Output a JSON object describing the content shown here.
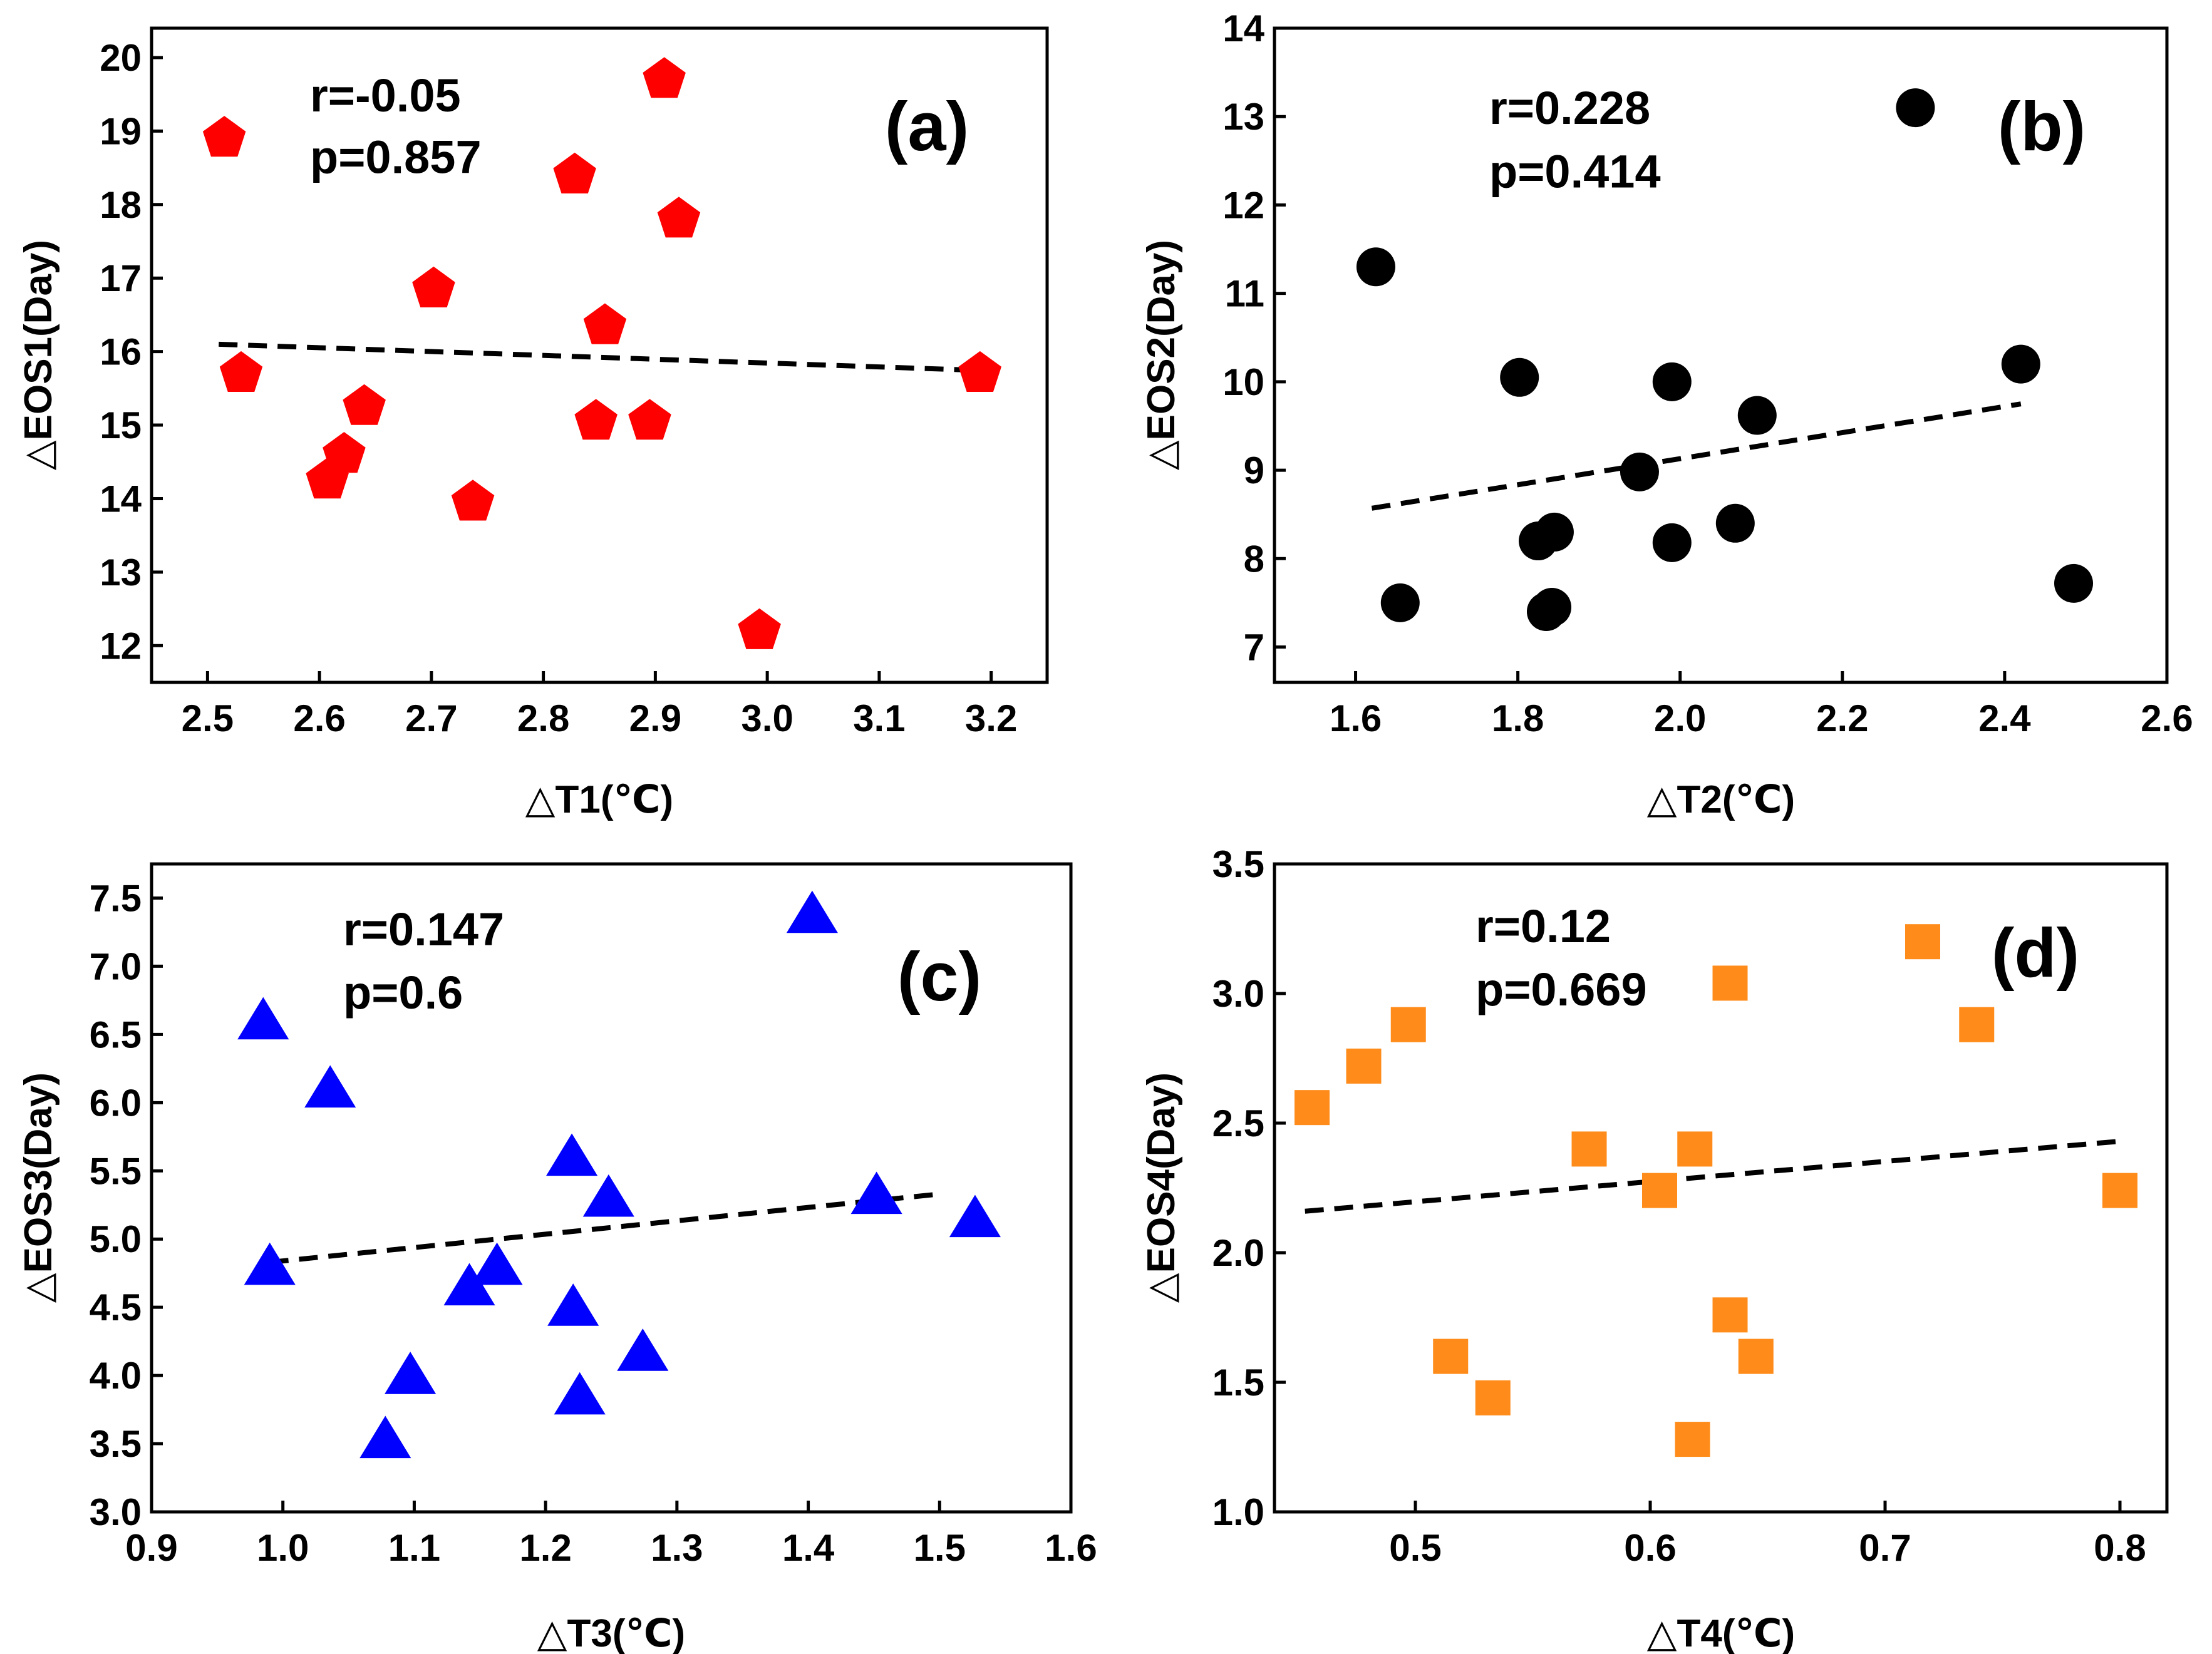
{
  "chart_data": [
    {
      "type": "scatter",
      "panel_label": "(a)",
      "xlabel": "△T1(℃)",
      "ylabel": "△EOS1(Day)",
      "xlim": [
        2.45,
        3.25
      ],
      "ylim": [
        11.5,
        20.4
      ],
      "xticks": [
        "2.5",
        "2.6",
        "2.7",
        "2.8",
        "2.9",
        "3.0",
        "3.1",
        "3.2"
      ],
      "yticks": [
        "12",
        "13",
        "14",
        "15",
        "16",
        "17",
        "18",
        "19",
        "20"
      ],
      "marker": "pentagon",
      "color": "#ff0000",
      "stats": {
        "r": "r=-0.05",
        "p": "p=0.857"
      },
      "fit": {
        "x": [
          2.51,
          3.18
        ],
        "y": [
          16.1,
          15.75
        ]
      },
      "points": [
        {
          "x": 2.515,
          "y": 18.9
        },
        {
          "x": 2.53,
          "y": 15.7
        },
        {
          "x": 2.607,
          "y": 14.25
        },
        {
          "x": 2.622,
          "y": 14.6
        },
        {
          "x": 2.64,
          "y": 15.25
        },
        {
          "x": 2.702,
          "y": 16.85
        },
        {
          "x": 2.737,
          "y": 13.95
        },
        {
          "x": 2.828,
          "y": 18.4
        },
        {
          "x": 2.847,
          "y": 15.05
        },
        {
          "x": 2.855,
          "y": 16.35
        },
        {
          "x": 2.895,
          "y": 15.05
        },
        {
          "x": 2.908,
          "y": 19.7
        },
        {
          "x": 2.921,
          "y": 17.8
        },
        {
          "x": 2.993,
          "y": 12.2
        },
        {
          "x": 3.19,
          "y": 15.7
        }
      ]
    },
    {
      "type": "scatter",
      "panel_label": "(b)",
      "xlabel": "△T2(℃)",
      "ylabel": "△EOS2(Day)",
      "xlim": [
        1.5,
        2.6
      ],
      "ylim": [
        6.6,
        14.0
      ],
      "xticks": [
        "1.6",
        "1.8",
        "2.0",
        "2.2",
        "2.4",
        "2.6"
      ],
      "yticks": [
        "7",
        "8",
        "9",
        "10",
        "11",
        "12",
        "13",
        "14"
      ],
      "marker": "circle",
      "color": "#000000",
      "stats": {
        "r": "r=0.228",
        "p": "p=0.414"
      },
      "fit": {
        "x": [
          1.62,
          2.42
        ],
        "y": [
          8.57,
          9.75
        ]
      },
      "points": [
        {
          "x": 1.625,
          "y": 11.3
        },
        {
          "x": 1.655,
          "y": 7.5
        },
        {
          "x": 1.802,
          "y": 10.05
        },
        {
          "x": 1.825,
          "y": 8.2
        },
        {
          "x": 1.835,
          "y": 7.4
        },
        {
          "x": 1.842,
          "y": 7.45
        },
        {
          "x": 1.845,
          "y": 8.3
        },
        {
          "x": 1.95,
          "y": 8.98
        },
        {
          "x": 1.99,
          "y": 8.18
        },
        {
          "x": 1.99,
          "y": 10.0
        },
        {
          "x": 2.068,
          "y": 8.4
        },
        {
          "x": 2.095,
          "y": 9.62
        },
        {
          "x": 2.29,
          "y": 13.1
        },
        {
          "x": 2.42,
          "y": 10.2
        },
        {
          "x": 2.485,
          "y": 7.72
        }
      ]
    },
    {
      "type": "scatter",
      "panel_label": "(c)",
      "xlabel": "△T3(℃)",
      "ylabel": "△EOS3(Day)",
      "xlim": [
        0.9,
        1.6
      ],
      "ylim": [
        3.0,
        7.75
      ],
      "xticks": [
        "0.9",
        "1.0",
        "1.1",
        "1.2",
        "1.3",
        "1.4",
        "1.5",
        "1.6"
      ],
      "yticks": [
        "3.0",
        "3.5",
        "4.0",
        "4.5",
        "5.0",
        "5.5",
        "6.0",
        "6.5",
        "7.0",
        "7.5"
      ],
      "marker": "triangle",
      "color": "#0000ff",
      "stats": {
        "r": "r=0.147",
        "p": "p=0.6"
      },
      "fit": {
        "x": [
          0.99,
          1.5
        ],
        "y": [
          4.83,
          5.33
        ]
      },
      "points": [
        {
          "x": 0.985,
          "y": 6.6
        },
        {
          "x": 0.99,
          "y": 4.8
        },
        {
          "x": 1.036,
          "y": 6.1
        },
        {
          "x": 1.078,
          "y": 3.53
        },
        {
          "x": 1.097,
          "y": 4.0
        },
        {
          "x": 1.142,
          "y": 4.65
        },
        {
          "x": 1.163,
          "y": 4.8
        },
        {
          "x": 1.22,
          "y": 5.6
        },
        {
          "x": 1.221,
          "y": 4.5
        },
        {
          "x": 1.226,
          "y": 3.85
        },
        {
          "x": 1.248,
          "y": 5.3
        },
        {
          "x": 1.274,
          "y": 4.17
        },
        {
          "x": 1.403,
          "y": 7.38
        },
        {
          "x": 1.452,
          "y": 5.32
        },
        {
          "x": 1.527,
          "y": 5.15
        }
      ]
    },
    {
      "type": "scatter",
      "panel_label": "(d)",
      "xlabel": "△T4(℃)",
      "ylabel": "△EOS4(Day)",
      "xlim": [
        0.44,
        0.82
      ],
      "ylim": [
        1.0,
        3.5
      ],
      "xticks": [
        "0.5",
        "0.6",
        "0.7",
        "0.8"
      ],
      "yticks": [
        "1.0",
        "1.5",
        "2.0",
        "2.5",
        "3.0",
        "3.5"
      ],
      "marker": "square",
      "color": "#ff8c1a",
      "stats": {
        "r": "r=0.12",
        "p": "p=0.669"
      },
      "fit": {
        "x": [
          0.453,
          0.8
        ],
        "y": [
          2.16,
          2.43
        ]
      },
      "points": [
        {
          "x": 0.456,
          "y": 2.56
        },
        {
          "x": 0.478,
          "y": 2.72
        },
        {
          "x": 0.497,
          "y": 2.88
        },
        {
          "x": 0.515,
          "y": 1.6
        },
        {
          "x": 0.533,
          "y": 1.44
        },
        {
          "x": 0.574,
          "y": 2.4
        },
        {
          "x": 0.604,
          "y": 2.24
        },
        {
          "x": 0.618,
          "y": 1.28
        },
        {
          "x": 0.619,
          "y": 2.4
        },
        {
          "x": 0.634,
          "y": 3.04
        },
        {
          "x": 0.634,
          "y": 1.76
        },
        {
          "x": 0.645,
          "y": 1.6
        },
        {
          "x": 0.716,
          "y": 3.2
        },
        {
          "x": 0.739,
          "y": 2.88
        },
        {
          "x": 0.8,
          "y": 2.24
        }
      ]
    }
  ]
}
